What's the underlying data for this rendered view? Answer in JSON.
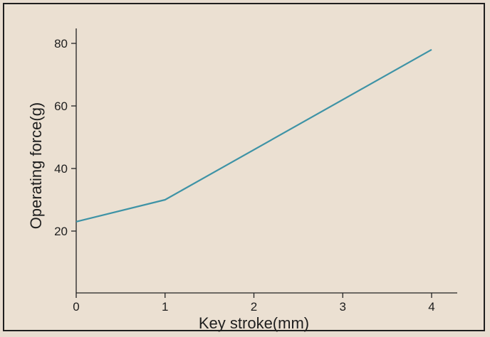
{
  "chart_data": {
    "type": "line",
    "title": "",
    "xlabel": "Key stroke(mm)",
    "ylabel": "Operating force(g)",
    "xlim": [
      0,
      4.3
    ],
    "ylim": [
      0,
      81
    ],
    "x_ticks": [
      0,
      1,
      2,
      3,
      4
    ],
    "y_ticks": [
      20,
      40,
      60,
      80
    ],
    "grid": false,
    "series": [
      {
        "x": [
          0,
          1,
          4
        ],
        "y": [
          23,
          30,
          78
        ],
        "color": "#3e93a6"
      }
    ]
  }
}
